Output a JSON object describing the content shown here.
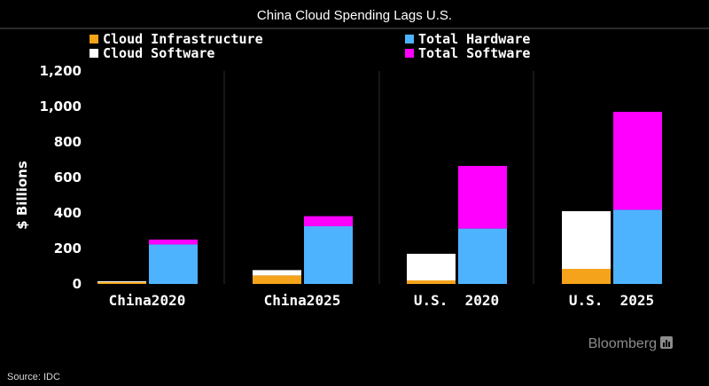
{
  "chart_data": {
    "type": "bar",
    "title": "China Cloud Spending Lags U.S.",
    "ylabel": "$ Billions",
    "xlabel": "",
    "ylim": [
      0,
      1200
    ],
    "yticks": [
      0,
      200,
      400,
      600,
      800,
      1000,
      1200
    ],
    "ytick_labels": [
      "0",
      "200",
      "400",
      "600",
      "800",
      "1,000",
      "1,200"
    ],
    "grid": false,
    "legend_position": "top",
    "categories": [
      "China2020",
      "China2025",
      "U.S.  2020",
      "U.S.  2025"
    ],
    "bar_groups": [
      {
        "name": "Software",
        "stack": [
          {
            "series": "Cloud Infrastructure",
            "values": [
              10,
              48,
              20,
              85
            ]
          },
          {
            "series": "Cloud Software",
            "values": [
              5,
              30,
              150,
              325
            ]
          }
        ]
      },
      {
        "name": "Hardware",
        "stack": [
          {
            "series": "Total Hardware",
            "values": [
              223,
              325,
              312,
              418
            ]
          },
          {
            "series": "Total Software",
            "values": [
              27,
              57,
              353,
              552
            ]
          }
        ]
      }
    ],
    "series": [
      {
        "name": "Cloud Infrastructure",
        "values": [
          10,
          48,
          20,
          85
        ]
      },
      {
        "name": "Cloud Software",
        "values": [
          5,
          30,
          150,
          325
        ]
      },
      {
        "name": "Total Hardware",
        "values": [
          223,
          325,
          312,
          418
        ]
      },
      {
        "name": "Total Software",
        "values": [
          27,
          57,
          353,
          552
        ]
      }
    ],
    "colors": {
      "Cloud Infrastructure": "#f5a31a",
      "Cloud Software": "#ffffff",
      "Total Hardware": "#4db3ff",
      "Total Software": "#ff00ff"
    },
    "legend": [
      {
        "name": "Cloud Infrastructure"
      },
      {
        "name": "Total Hardware"
      },
      {
        "name": "Cloud Software"
      },
      {
        "name": "Total Software"
      }
    ]
  },
  "footer": {
    "source": "Source: IDC",
    "brand": "Bloomberg"
  }
}
